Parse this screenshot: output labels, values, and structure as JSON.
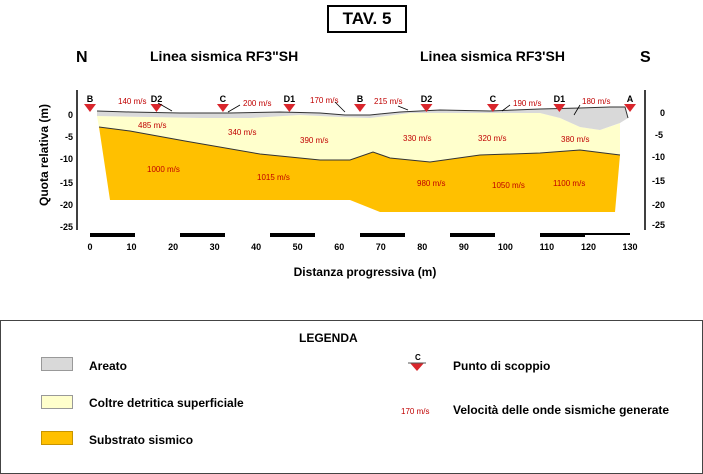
{
  "title": "TAV. 5",
  "compass": {
    "north": "N",
    "south": "S"
  },
  "lines": [
    {
      "label": "Linea sismica RF3\"SH"
    },
    {
      "label": "Linea sismica RF3'SH"
    }
  ],
  "axes": {
    "ylabel": "Quota relativa (m)",
    "xlabel": "Distanza progressiva (m)",
    "xticks": [
      "0",
      "10",
      "20",
      "30",
      "40",
      "50",
      "60",
      "70",
      "80",
      "90",
      "100",
      "110",
      "120",
      "130"
    ],
    "yticks_left": [
      "0",
      "-5",
      "-10",
      "-15",
      "-20",
      "-25"
    ],
    "yticks_right": [
      "0",
      "-5",
      "-10",
      "-15",
      "-20",
      "-25"
    ]
  },
  "shot_points": [
    {
      "label": "B",
      "x": 0
    },
    {
      "label": "D2",
      "x": 16
    },
    {
      "label": "C",
      "x": 32
    },
    {
      "label": "D1",
      "x": 48
    },
    {
      "label": "B",
      "x": 65
    },
    {
      "label": "D2",
      "x": 81
    },
    {
      "label": "C",
      "x": 97
    },
    {
      "label": "D1",
      "x": 113
    },
    {
      "label": "A",
      "x": 130
    }
  ],
  "velocities": {
    "areato": [
      "140 m/s",
      "200 m/s",
      "170 m/s",
      "215 m/s",
      "190 m/s",
      "180 m/s"
    ],
    "coltre": [
      "485 m/s",
      "340 m/s",
      "390 m/s",
      "330 m/s",
      "320 m/s",
      "380 m/s"
    ],
    "substrato": [
      "1000 m/s",
      "1015 m/s",
      "980 m/s",
      "1050 m/s",
      "1100 m/s"
    ]
  },
  "legend": {
    "title": "LEGENDA",
    "areato": "Areato",
    "coltre": "Coltre detritica superficiale",
    "substrato": "Substrato sismico",
    "shot_icon_letter": "C",
    "shot": "Punto di scoppio",
    "velocity_sample": "170 m/s",
    "velocity": "Velocità delle onde sismiche generate"
  },
  "colors": {
    "areato": "#d9d9d9",
    "coltre": "#ffffcc",
    "substrato": "#ffc000",
    "velocity_text": "#c00000",
    "shot_marker": "#d9262c"
  }
}
